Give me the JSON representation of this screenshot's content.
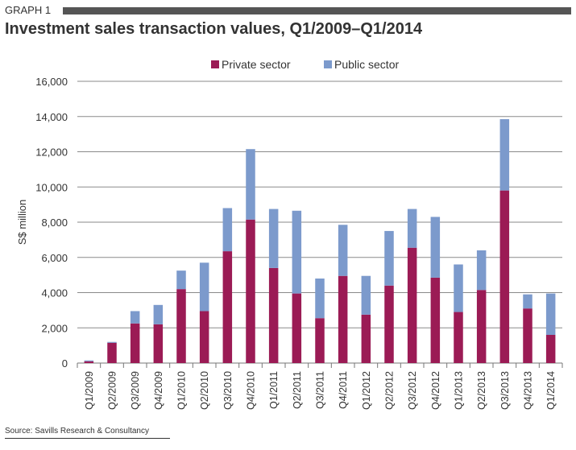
{
  "header": {
    "graph_label": "GRAPH 1",
    "title": "Investment sales transaction values, Q1/2009–Q1/2014"
  },
  "footer": {
    "source": "Source: Savills Research & Consultancy"
  },
  "chart_data": {
    "type": "bar",
    "stacked": true,
    "title": "Investment sales transaction values, Q1/2009–Q1/2014",
    "xlabel": "",
    "ylabel": "S$ million",
    "ylim": [
      0,
      16000
    ],
    "yticks": [
      0,
      2000,
      4000,
      6000,
      8000,
      10000,
      12000,
      14000,
      16000
    ],
    "ytick_labels": [
      "0",
      "2,000",
      "4,000",
      "6,000",
      "8,000",
      "10,000",
      "12,000",
      "14,000",
      "16,000"
    ],
    "grid": true,
    "legend_position": "top-center",
    "categories": [
      "Q1/2009",
      "Q2/2009",
      "Q3/2009",
      "Q4/2009",
      "Q1/2010",
      "Q2/2010",
      "Q3/2010",
      "Q4/2010",
      "Q1/2011",
      "Q2/2011",
      "Q3/2011",
      "Q4/2011",
      "Q1/2012",
      "Q2/2012",
      "Q3/2012",
      "Q4/2012",
      "Q1/2013",
      "Q2/2013",
      "Q3/2013",
      "Q4/2013",
      "Q1/2014"
    ],
    "series": [
      {
        "name": "Private sector",
        "color": "#9b1b55",
        "values": [
          100,
          1150,
          2250,
          2200,
          4200,
          2950,
          6350,
          8150,
          5400,
          3950,
          2550,
          4950,
          2750,
          4400,
          6550,
          4850,
          2900,
          4150,
          9800,
          3100,
          1600
        ]
      },
      {
        "name": "Public sector",
        "color": "#7c9acc",
        "values": [
          50,
          50,
          700,
          1100,
          1050,
          2750,
          2450,
          4000,
          3350,
          4700,
          2250,
          2900,
          2200,
          3100,
          2200,
          3450,
          2700,
          2250,
          4050,
          800,
          2350
        ]
      }
    ]
  }
}
